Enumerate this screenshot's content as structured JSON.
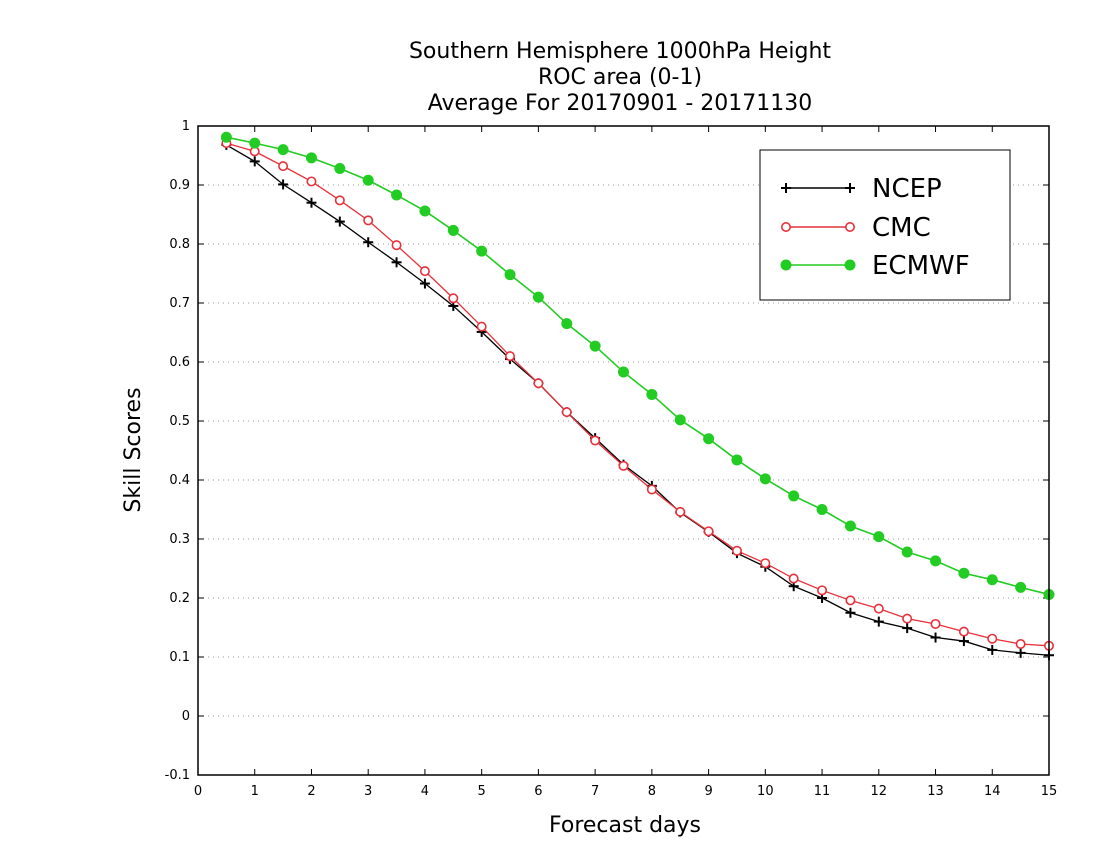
{
  "chart_data": {
    "type": "line",
    "title": [
      "Southern Hemisphere 1000hPa Height",
      "ROC area (0-1)",
      "Average For 20170901 - 20171130"
    ],
    "xlabel": "Forecast days",
    "ylabel": "Skill Scores",
    "xlim": [
      0,
      15
    ],
    "ylim": [
      -0.1,
      1
    ],
    "xticks": [
      "0",
      "1",
      "2",
      "3",
      "4",
      "5",
      "6",
      "7",
      "8",
      "9",
      "10",
      "11",
      "12",
      "13",
      "14",
      "15"
    ],
    "yticks": [
      "-0.1",
      "0",
      "0.1",
      "0.2",
      "0.3",
      "0.4",
      "0.5",
      "0.6",
      "0.7",
      "0.8",
      "0.9",
      "1"
    ],
    "grid": "horizontal dotted",
    "legend_position": "top-right",
    "x": [
      0.5,
      1,
      1.5,
      2,
      2.5,
      3,
      3.5,
      4,
      4.5,
      5,
      5.5,
      6,
      6.5,
      7,
      7.5,
      8,
      8.5,
      9,
      9.5,
      10,
      10.5,
      11,
      11.5,
      12,
      12.5,
      13,
      13.5,
      14,
      14.5,
      15
    ],
    "series": [
      {
        "name": "NCEP",
        "color": "#000000",
        "marker": "plus",
        "values": [
          0.968,
          0.94,
          0.901,
          0.87,
          0.838,
          0.803,
          0.769,
          0.733,
          0.695,
          0.651,
          0.605,
          0.564,
          0.515,
          0.471,
          0.426,
          0.39,
          0.345,
          0.312,
          0.276,
          0.253,
          0.22,
          0.2,
          0.175,
          0.16,
          0.149,
          0.133,
          0.127,
          0.112,
          0.107,
          0.103
        ]
      },
      {
        "name": "CMC",
        "color": "#e8303a",
        "marker": "open-circle",
        "values": [
          0.971,
          0.957,
          0.932,
          0.906,
          0.874,
          0.84,
          0.798,
          0.754,
          0.708,
          0.66,
          0.61,
          0.564,
          0.515,
          0.467,
          0.424,
          0.384,
          0.346,
          0.313,
          0.28,
          0.259,
          0.233,
          0.213,
          0.196,
          0.182,
          0.165,
          0.156,
          0.143,
          0.131,
          0.122,
          0.119
        ]
      },
      {
        "name": "ECMWF",
        "color": "#22cc22",
        "marker": "filled-circle",
        "values": [
          0.981,
          0.971,
          0.96,
          0.946,
          0.928,
          0.908,
          0.883,
          0.856,
          0.823,
          0.788,
          0.748,
          0.71,
          0.665,
          0.627,
          0.583,
          0.545,
          0.502,
          0.47,
          0.434,
          0.402,
          0.373,
          0.35,
          0.322,
          0.304,
          0.278,
          0.263,
          0.242,
          0.231,
          0.218,
          0.206
        ]
      }
    ]
  }
}
